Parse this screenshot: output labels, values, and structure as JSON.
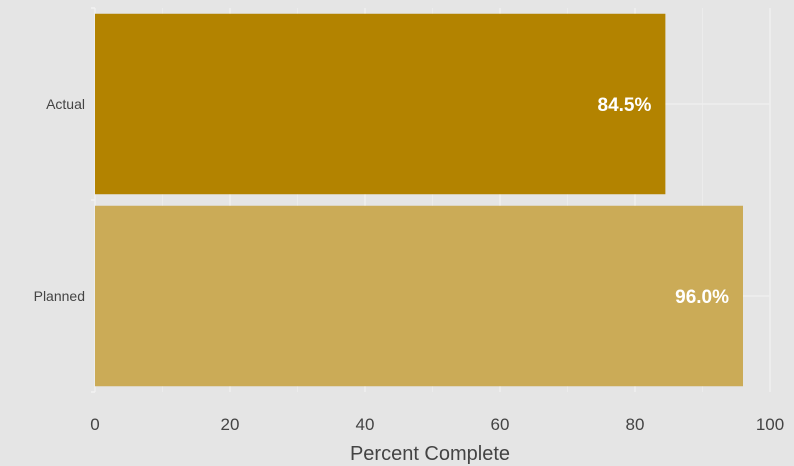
{
  "chart_data": {
    "type": "bar",
    "orientation": "horizontal",
    "categories": [
      "Actual",
      "Planned"
    ],
    "values": [
      84.5,
      96.0
    ],
    "data_labels": [
      "84.5%",
      "96.0%"
    ],
    "bar_colors": [
      "#b38300",
      "#cbab57"
    ],
    "background_color": "#e5e5e5",
    "xlabel": "Percent Complete",
    "ylabel": "",
    "xlim": [
      0,
      100
    ],
    "xticks": [
      "0",
      "20",
      "40",
      "60",
      "80",
      "100"
    ],
    "grid": true
  }
}
